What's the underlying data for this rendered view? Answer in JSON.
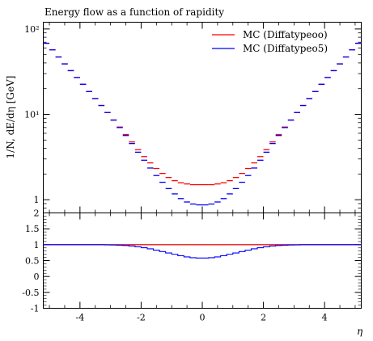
{
  "chart_data": [
    {
      "type": "line",
      "title": "Energy flow as a function of rapidity",
      "xlabel": "",
      "ylabel": "1/N, dE/dη [GeV]",
      "yscale": "log",
      "xlim": [
        -5.2,
        5.2
      ],
      "ylim": [
        0.7,
        120
      ],
      "y_ticks": [
        {
          "value": 1,
          "label": "1"
        },
        {
          "value": 10,
          "label": "10¹"
        },
        {
          "value": 100,
          "label": "10²"
        }
      ],
      "legend_position": "top-right",
      "x": [
        -5.1,
        -4.9,
        -4.7,
        -4.5,
        -4.3,
        -4.1,
        -3.9,
        -3.7,
        -3.5,
        -3.3,
        -3.1,
        -2.9,
        -2.7,
        -2.5,
        -2.3,
        -2.1,
        -1.9,
        -1.7,
        -1.5,
        -1.3,
        -1.1,
        -0.9,
        -0.7,
        -0.5,
        -0.3,
        -0.1,
        0.1,
        0.3,
        0.5,
        0.7,
        0.9,
        1.1,
        1.3,
        1.5,
        1.7,
        1.9,
        2.1,
        2.3,
        2.5,
        2.7,
        2.9,
        3.1,
        3.3,
        3.5,
        3.7,
        3.9,
        4.1,
        4.3,
        4.5,
        4.7,
        4.9,
        5.1
      ],
      "series": [
        {
          "name": "MC (Diffatypeoo)",
          "color": "#ff0000",
          "values": [
            68,
            57,
            47,
            39,
            32.5,
            27,
            22.5,
            18.5,
            15.3,
            12.7,
            10.5,
            8.6,
            7.1,
            5.8,
            4.75,
            3.85,
            3.2,
            2.7,
            2.32,
            2.03,
            1.82,
            1.67,
            1.58,
            1.53,
            1.5,
            1.5,
            1.5,
            1.5,
            1.53,
            1.58,
            1.67,
            1.82,
            2.03,
            2.32,
            2.7,
            3.2,
            3.85,
            4.75,
            5.8,
            7.1,
            8.6,
            10.5,
            12.7,
            15.3,
            18.5,
            22.5,
            27,
            32.5,
            39,
            47,
            57,
            68
          ]
        },
        {
          "name": "MC (Diffatypeo5)",
          "color": "#0000ff",
          "values": [
            68,
            57,
            47,
            39,
            32.5,
            27,
            22.5,
            18.5,
            15.3,
            12.7,
            10.5,
            8.55,
            7.0,
            5.65,
            4.55,
            3.6,
            2.9,
            2.35,
            1.92,
            1.6,
            1.35,
            1.17,
            1.03,
            0.94,
            0.89,
            0.87,
            0.87,
            0.89,
            0.94,
            1.03,
            1.17,
            1.35,
            1.6,
            1.92,
            2.35,
            2.9,
            3.6,
            4.55,
            5.65,
            7.0,
            8.55,
            10.5,
            12.7,
            15.3,
            18.5,
            22.5,
            27,
            32.5,
            39,
            47,
            57,
            68
          ]
        }
      ]
    },
    {
      "type": "line",
      "title": "",
      "xlabel": "η",
      "ylabel": "",
      "xlim": [
        -5.2,
        5.2
      ],
      "ylim": [
        -1,
        2
      ],
      "x_ticks": [
        {
          "value": -4,
          "label": "-4"
        },
        {
          "value": -2,
          "label": "-2"
        },
        {
          "value": 0,
          "label": "0"
        },
        {
          "value": 2,
          "label": "2"
        },
        {
          "value": 4,
          "label": "4"
        }
      ],
      "y_ticks": [
        {
          "value": -1,
          "label": "-1"
        },
        {
          "value": -0.5,
          "label": "-0.5"
        },
        {
          "value": 0,
          "label": "0"
        },
        {
          "value": 0.5,
          "label": "0.5"
        },
        {
          "value": 1,
          "label": "1"
        },
        {
          "value": 1.5,
          "label": "1.5"
        },
        {
          "value": 2,
          "label": "2"
        }
      ],
      "reference_line": 1,
      "x": [
        -5.1,
        -4.9,
        -4.7,
        -4.5,
        -4.3,
        -4.1,
        -3.9,
        -3.7,
        -3.5,
        -3.3,
        -3.1,
        -2.9,
        -2.7,
        -2.5,
        -2.3,
        -2.1,
        -1.9,
        -1.7,
        -1.5,
        -1.3,
        -1.1,
        -0.9,
        -0.7,
        -0.5,
        -0.3,
        -0.1,
        0.1,
        0.3,
        0.5,
        0.7,
        0.9,
        1.1,
        1.3,
        1.5,
        1.7,
        1.9,
        2.1,
        2.3,
        2.5,
        2.7,
        2.9,
        3.1,
        3.3,
        3.5,
        3.7,
        3.9,
        4.1,
        4.3,
        4.5,
        4.7,
        4.9,
        5.1
      ],
      "series": [
        {
          "name": "MC (Diffatypeoo)",
          "color": "#ff0000",
          "values": [
            1,
            1,
            1,
            1,
            1,
            1,
            1,
            1,
            1,
            1,
            1,
            1,
            1,
            1,
            1,
            1,
            1,
            1,
            1,
            1,
            1,
            1,
            1,
            1,
            1,
            1,
            1,
            1,
            1,
            1,
            1,
            1,
            1,
            1,
            1,
            1,
            1,
            1,
            1,
            1,
            1,
            1,
            1,
            1,
            1,
            1,
            1,
            1,
            1,
            1,
            1,
            1
          ]
        },
        {
          "name": "MC (Diffatypeo5)",
          "color": "#0000ff",
          "values": [
            1,
            1,
            1,
            1,
            1,
            1,
            1,
            1,
            1,
            1,
            0.995,
            0.99,
            0.985,
            0.975,
            0.96,
            0.935,
            0.905,
            0.87,
            0.83,
            0.785,
            0.74,
            0.7,
            0.655,
            0.615,
            0.59,
            0.58,
            0.58,
            0.59,
            0.615,
            0.655,
            0.7,
            0.74,
            0.785,
            0.83,
            0.87,
            0.905,
            0.935,
            0.96,
            0.975,
            0.985,
            0.99,
            0.995,
            1,
            1,
            1,
            1,
            1,
            1,
            1,
            1,
            1,
            1
          ]
        }
      ]
    }
  ]
}
